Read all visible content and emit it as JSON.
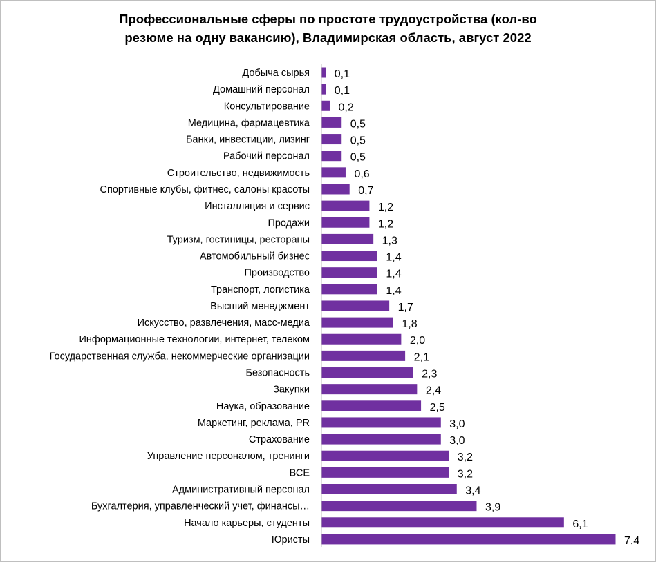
{
  "chart_data": {
    "type": "bar",
    "orientation": "horizontal",
    "title_lines": [
      "Профессиональные сферы по простоте трудоустройства (кол-во",
      "резюме на одну вакансию), Владимирская область, август 2022"
    ],
    "categories": [
      "Добыча сырья",
      "Домашний персонал",
      "Консультирование",
      "Медицина, фармацевтика",
      "Банки, инвестиции, лизинг",
      "Рабочий персонал",
      "Строительство, недвижимость",
      "Спортивные клубы, фитнес, салоны красоты",
      "Инсталляция и сервис",
      "Продажи",
      "Туризм, гостиницы, рестораны",
      "Автомобильный бизнес",
      "Производство",
      "Транспорт, логистика",
      "Высший менеджмент",
      "Искусство, развлечения, масс-медиа",
      "Информационные технологии, интернет, телеком",
      "Государственная служба, некоммерческие организации",
      "Безопасность",
      "Закупки",
      "Наука, образование",
      "Маркетинг, реклама, PR",
      "Страхование",
      "Управление персоналом, тренинги",
      "ВСЕ",
      "Административный персонал",
      "Бухгалтерия, управленческий учет, финансы…",
      "Начало карьеры, студенты",
      "Юристы"
    ],
    "values": [
      0.1,
      0.1,
      0.2,
      0.5,
      0.5,
      0.5,
      0.6,
      0.7,
      1.2,
      1.2,
      1.3,
      1.4,
      1.4,
      1.4,
      1.7,
      1.8,
      2.0,
      2.1,
      2.3,
      2.4,
      2.5,
      3.0,
      3.0,
      3.2,
      3.2,
      3.4,
      3.9,
      6.1,
      7.4
    ],
    "value_labels": [
      "0,1",
      "0,1",
      "0,2",
      "0,5",
      "0,5",
      "0,5",
      "0,6",
      "0,7",
      "1,2",
      "1,2",
      "1,3",
      "1,4",
      "1,4",
      "1,4",
      "1,7",
      "1,8",
      "2,0",
      "2,1",
      "2,3",
      "2,4",
      "2,5",
      "3,0",
      "3,0",
      "3,2",
      "3,2",
      "3,4",
      "3,9",
      "6,1",
      "7,4"
    ],
    "xlim": [
      0,
      7.4
    ],
    "grid": false,
    "legend": "none",
    "bar_color": "#7030a0",
    "axis_color": "#bfbfbf"
  }
}
